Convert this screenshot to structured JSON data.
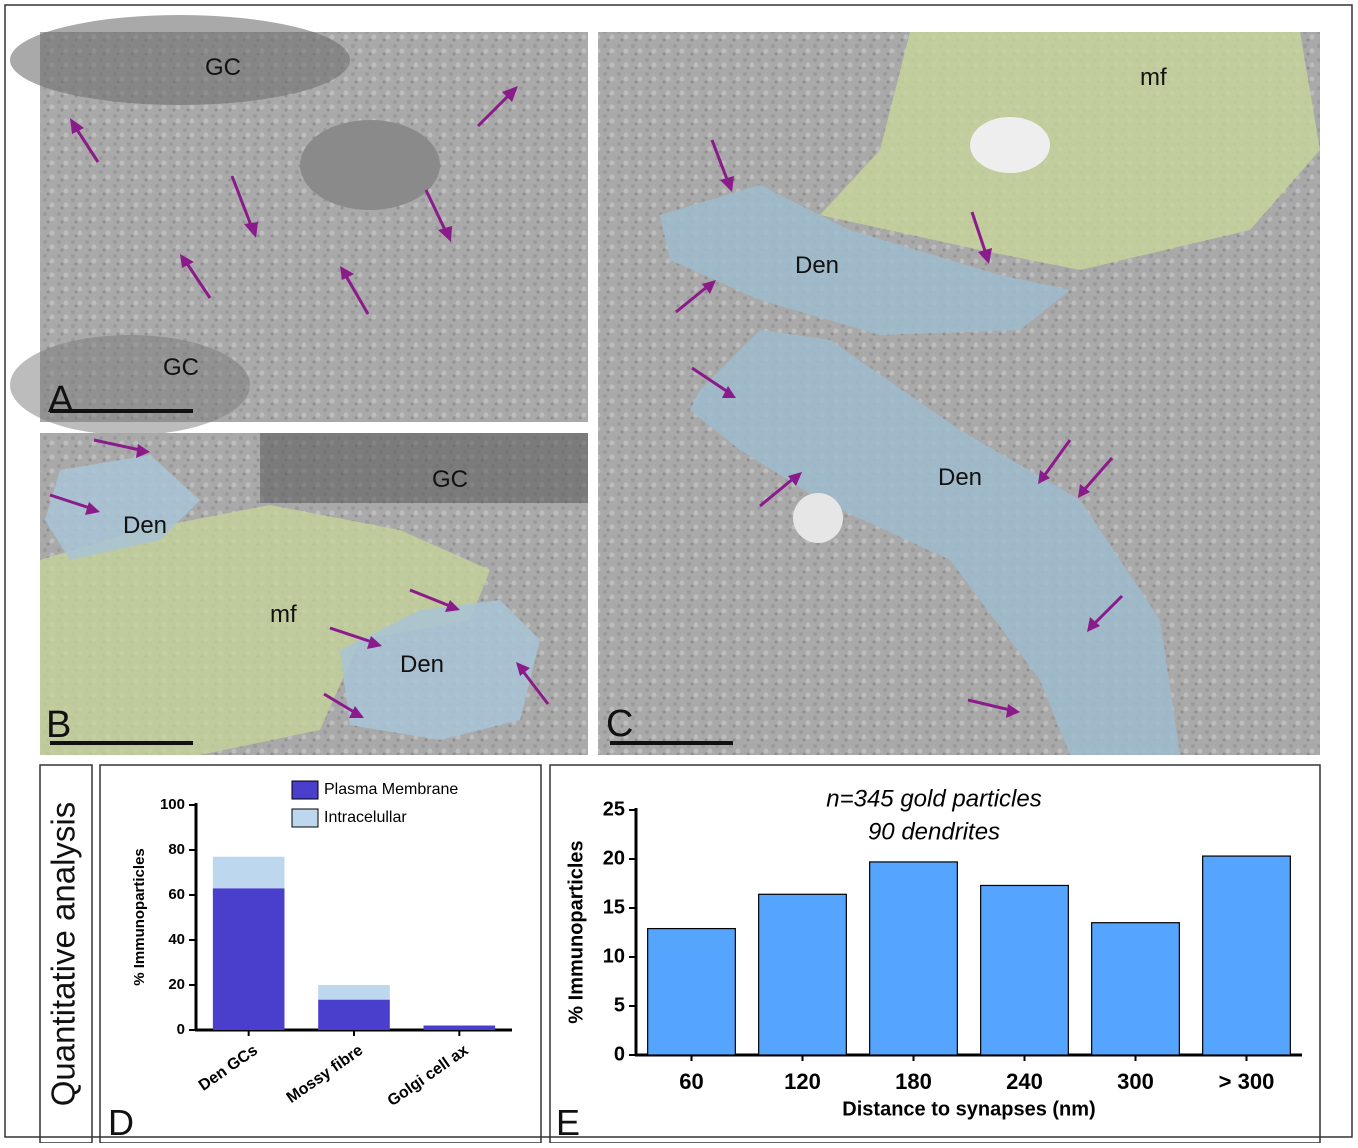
{
  "panels": {
    "A": {
      "letter": "A",
      "labels": [
        "GC",
        "GC"
      ]
    },
    "B": {
      "letter": "B",
      "labels": [
        "GC",
        "Den",
        "mf",
        "Den"
      ]
    },
    "C": {
      "letter": "C",
      "labels": [
        "mf",
        "Den",
        "Den"
      ]
    }
  },
  "side_label": "Quantitative analysis",
  "chart_data": [
    {
      "type": "bar",
      "letter": "D",
      "ylabel": "% Immunoparticles",
      "categories": [
        "Den GCs",
        "Mossy fibre",
        "Golgi cell ax"
      ],
      "series": [
        {
          "name": "Plasma Membrane",
          "color": "#4a3fcc",
          "values": [
            63,
            13.5,
            2
          ]
        },
        {
          "name": "Intracelullar",
          "color": "#bcd7ee",
          "values": [
            14,
            6.5,
            0
          ]
        }
      ],
      "stacked": true,
      "ylim": [
        0,
        100
      ],
      "yticks": [
        0,
        20,
        40,
        60,
        80,
        100
      ]
    },
    {
      "type": "bar",
      "letter": "E",
      "ylabel": "% Immunoparticles",
      "xlabel": "Distance to synapses (nm)",
      "annotations": [
        "n=345 gold particles",
        "90 dendrites"
      ],
      "categories": [
        "60",
        "120",
        "180",
        "240",
        "300",
        "> 300"
      ],
      "values": [
        12.9,
        16.4,
        19.7,
        17.3,
        13.5,
        20.3
      ],
      "color": "#55a5ff",
      "ylim": [
        0,
        25
      ],
      "yticks": [
        0,
        5,
        10,
        15,
        20,
        25
      ]
    }
  ]
}
